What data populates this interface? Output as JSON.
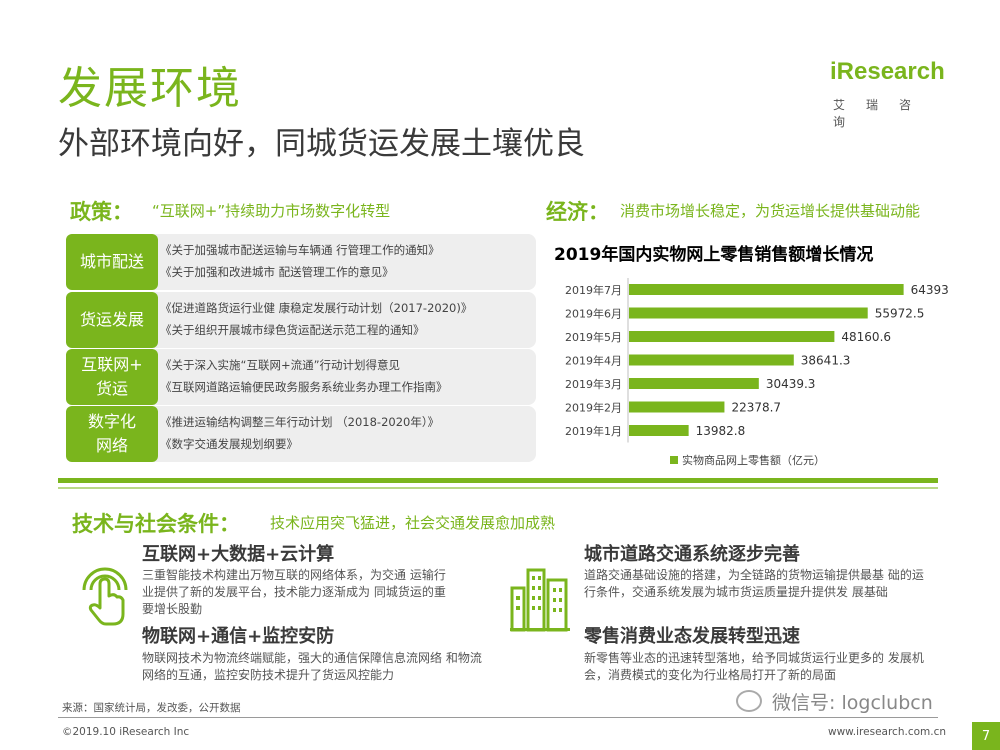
{
  "header": {
    "title": "发展环境",
    "subtitle": "外部环境向好，同城货运发展土壤优良"
  },
  "logo": {
    "wordmark": "iResearch",
    "cn": "艾瑞咨询"
  },
  "policy": {
    "heading": "政策：",
    "desc": "“互联网+”持续助力市场数字化转型",
    "rows": [
      {
        "tag": "城市配送",
        "lines": [
          "《关于加强城市配送运输与车辆通 行管理工作的通知》",
          "《关于加强和改进城市 配送管理工作的意见》"
        ]
      },
      {
        "tag": "货运发展",
        "lines": [
          "《促进道路货运行业健 康稳定发展行动计划（2017-2020)》",
          "《关于组织开展城市绿色货运配送示范工程的通知》"
        ]
      },
      {
        "tag": "互联网+ 货运",
        "lines": [
          "《关于深入实施“互联网+流通”行动计划得意见",
          "《互联网道路运输便民政务服务系统业务办理工作指南》"
        ]
      },
      {
        "tag": "数字化 网络",
        "lines": [
          "《推进运输结构调整三年行动计划 （2018-2020年）》",
          "《数字交通发展规划纲要》"
        ]
      }
    ]
  },
  "economy": {
    "heading": "经济：",
    "desc": "消费市场增长稳定，为货运增长提供基础动能"
  },
  "chart_data": {
    "type": "bar",
    "orientation": "horizontal",
    "title": "2019年国内实物网上零售销售额增长情况",
    "categories": [
      "2019年7月",
      "2019年6月",
      "2019年5月",
      "2019年4月",
      "2019年3月",
      "2019年2月",
      "2019年1月"
    ],
    "series": [
      {
        "name": "实物商品网上零售额（亿元）",
        "values": [
          64393,
          55972.5,
          48160.6,
          38641.3,
          30439.3,
          22378.7,
          13982.8
        ],
        "color": "#7ab51d"
      }
    ],
    "value_labels": [
      "64393",
      "55972.5",
      "48160.6",
      "38641.3",
      "30439.3",
      "22378.7",
      "13982.8"
    ],
    "xlim": [
      0,
      68000
    ],
    "legend": "bottom-center",
    "grid": false
  },
  "tech": {
    "heading": "技术与社会条件：",
    "desc": "技术应用突飞猛进，社会交通发展愈加成熟",
    "items": [
      {
        "title": "互联网+大数据+云计算",
        "desc": "三重智能技术构建出万物互联的网络体系，为交通 运输行业提供了新的发展平台，技术能力逐渐成为 同城货运的重要增长股勤"
      },
      {
        "title": "物联网+通信+监控安防",
        "desc": "物联网技术为物流终端赋能，强大的通信保障信息流网络 和物流网络的互通，监控安防技术提升了货运风控能力"
      },
      {
        "title": "城市道路交通系统逐步完善",
        "desc": "道路交通基础设施的搭建，为全链路的货物运输提供最基 础的运行条件，交通系统发展为城市货运质量提升提供发 展基础"
      },
      {
        "title": "零售消费业态发展转型迅速",
        "desc": "新零售等业态的迅速转型落地，给予同城货运行业更多的 发展机会，消费模式的变化为行业格局打开了新的局面"
      }
    ]
  },
  "footer": {
    "source": "来源：国家统计局，发改委，公开数据",
    "copyright": "©2019.10 iResearch Inc",
    "url": "www.iresearch.com.cn",
    "wechat": "微信号: logclubcn",
    "page": "7"
  },
  "colors": {
    "accent": "#7ab51d",
    "accent_light": "#b9d986",
    "panel": "#eeeeee"
  }
}
